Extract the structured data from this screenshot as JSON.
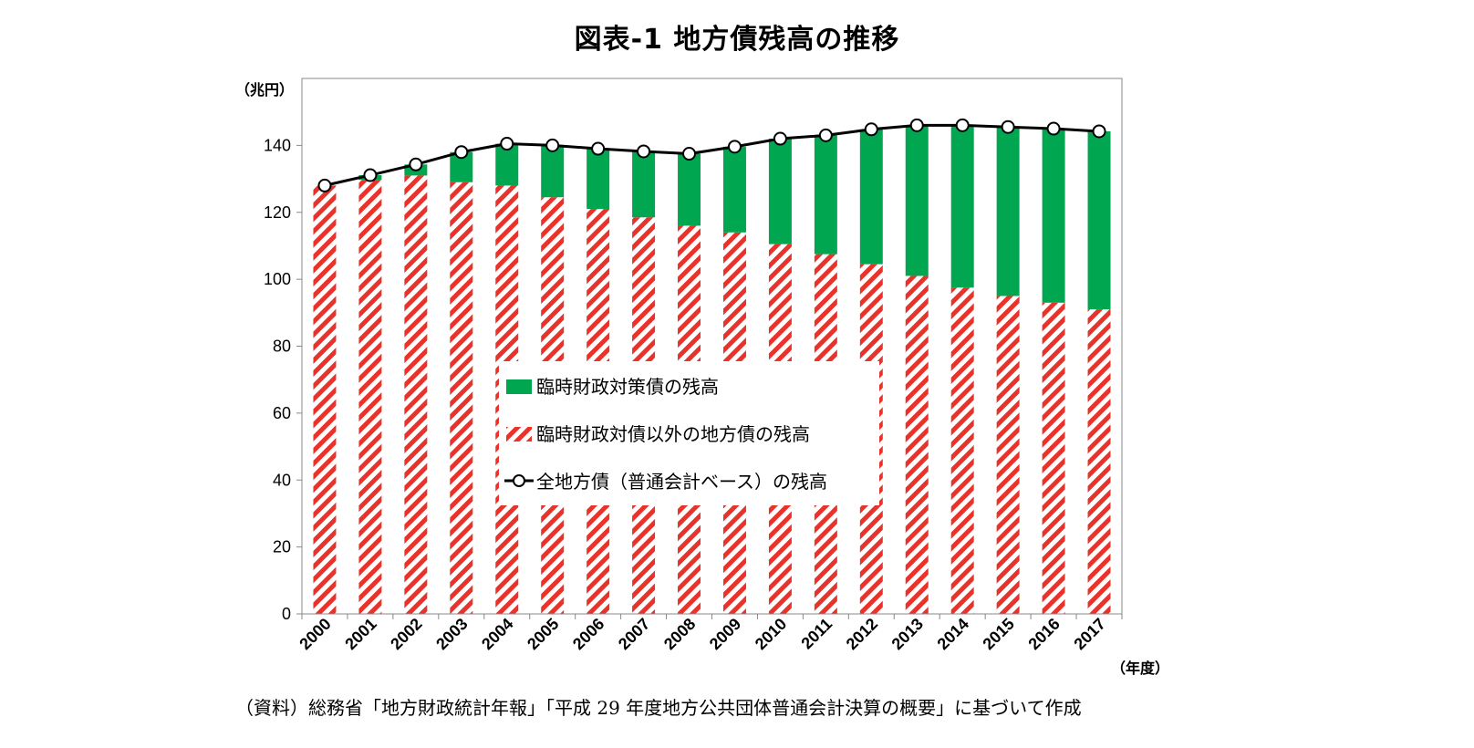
{
  "title": "図表-1 地方債残高の推移",
  "source": "（資料）総務省「地方財政統計年報」「平成 29 年度地方公共団体普通会計決算の概要」に基づいて作成",
  "chart_data": {
    "type": "bar",
    "stacked": true,
    "title": "図表-1 地方債残高の推移",
    "ylabel": "（兆円）",
    "xlabel": "（年度）",
    "ylim": [
      0,
      160
    ],
    "yticks": [
      0,
      20,
      40,
      60,
      80,
      100,
      120,
      140
    ],
    "categories": [
      "2000",
      "2001",
      "2002",
      "2003",
      "2004",
      "2005",
      "2006",
      "2007",
      "2008",
      "2009",
      "2010",
      "2011",
      "2012",
      "2013",
      "2014",
      "2015",
      "2016",
      "2017"
    ],
    "series": [
      {
        "name": "臨時財政対債以外の地方債の残高",
        "kind": "bar",
        "color": "#e8322a",
        "pattern": "diagonal-hatch",
        "values": [
          128,
          129.7,
          131,
          129,
          128,
          124.5,
          121,
          118.5,
          116,
          114,
          110.5,
          107.5,
          104.5,
          101,
          97.5,
          95,
          93,
          91
        ]
      },
      {
        "name": "臨時財政対策債の残高",
        "kind": "bar",
        "color": "#00a650",
        "values": [
          0,
          1.4,
          3.3,
          9,
          12.5,
          15.5,
          18,
          19.7,
          21.5,
          25.6,
          31.5,
          35.5,
          40.3,
          45,
          48.5,
          50.5,
          52,
          53.2
        ]
      },
      {
        "name": "全地方債（普通会計ベース）の残高",
        "kind": "line",
        "color": "#000000",
        "marker": "hollow-circle",
        "values": [
          128,
          131.1,
          134.3,
          138,
          140.5,
          140,
          139,
          138.2,
          137.5,
          139.6,
          142,
          143,
          144.8,
          146,
          146,
          145.5,
          145,
          144.2
        ]
      }
    ],
    "legend_position": "center",
    "grid": false
  }
}
